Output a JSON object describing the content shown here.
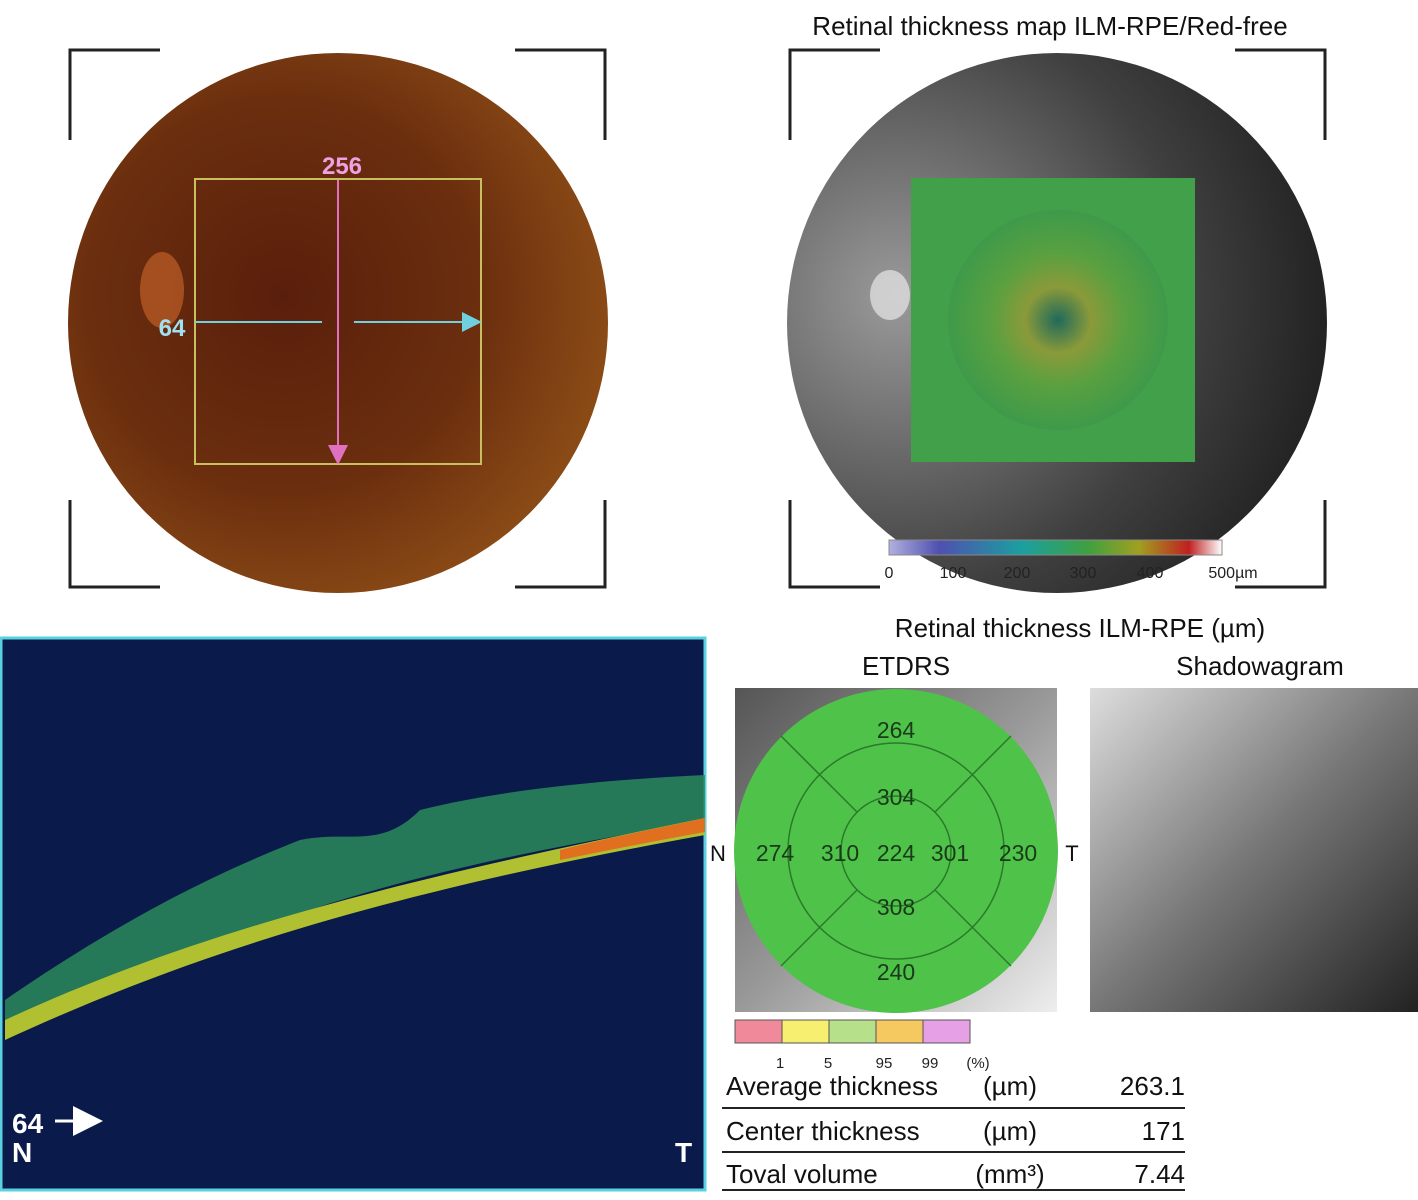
{
  "fundus": {
    "vertical_scan": "256",
    "horizontal_scan": "64"
  },
  "thickness_map": {
    "title": "Retinal thickness map ILM-RPE/Red-free",
    "scale_labels": [
      "0",
      "100",
      "200",
      "300",
      "400",
      "500µm"
    ]
  },
  "bscan": {
    "scan_label": "64",
    "left": "N",
    "right": "T"
  },
  "etdrs": {
    "title": "Retinal thickness ILM-RPE (µm)",
    "etdrs_label": "ETDRS",
    "shadow_label": "Shadowagram",
    "nasal": "N",
    "temporal": "T",
    "sectors": {
      "outer_superior": "264",
      "inner_superior": "304",
      "outer_nasal": "274",
      "inner_nasal": "310",
      "center": "224",
      "inner_temporal": "301",
      "outer_temporal": "230",
      "inner_inferior": "308",
      "outer_inferior": "240"
    },
    "legend": [
      "1",
      "5",
      "95",
      "99",
      "(%)"
    ]
  },
  "table": {
    "rows": [
      [
        "Average thickness",
        "(µm)",
        "263.1"
      ],
      [
        "Center thickness",
        "(µm)",
        "171"
      ],
      [
        "Toval volume",
        "(mm³)",
        "7.44"
      ]
    ]
  }
}
